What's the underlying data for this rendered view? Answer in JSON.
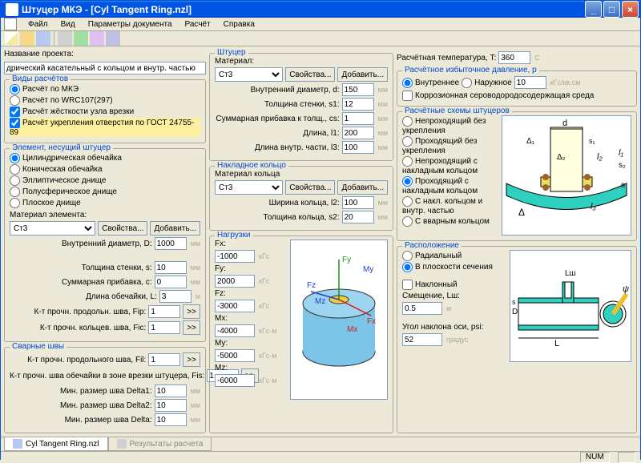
{
  "window": {
    "title": "Штуцер МКЭ - [Cyl Tangent Ring.nzl]"
  },
  "menu": {
    "file": "Файл",
    "view": "Вид",
    "docparams": "Параметры документа",
    "calc": "Расчёт",
    "help": "Справка"
  },
  "toolbar_icons": [
    "new",
    "open",
    "save",
    "sep",
    "cut",
    "calc",
    "report",
    "help"
  ],
  "project": {
    "label": "Название проекта:",
    "value": "дрический касательный с кольцом и внутр. частью"
  },
  "calc_types": {
    "title": "Виды расчётов",
    "items": [
      {
        "label": "Расчёт по МКЭ",
        "type": "radio",
        "checked": true
      },
      {
        "label": "Расчёт по WRC107(297)",
        "type": "radio",
        "checked": false
      },
      {
        "label": "Расчёт жёсткости узла врезки",
        "type": "check",
        "checked": true
      },
      {
        "label": "Расчёт укрепления отверстия по ГОСТ 24755-89",
        "type": "check",
        "checked": true,
        "highlight": true
      }
    ]
  },
  "element": {
    "title": "Элемент, несущий штуцер",
    "shapes": [
      {
        "label": "Цилиндрическая обечайка",
        "checked": true
      },
      {
        "label": "Коническая обечайка",
        "checked": false
      },
      {
        "label": "Эллиптическое днище",
        "checked": false
      },
      {
        "label": "Полусферическое днище",
        "checked": false
      },
      {
        "label": "Плоское днище",
        "checked": false
      }
    ],
    "mat_label": "Материал элемента:",
    "mat_value": "Ст3",
    "props_btn": "Свойства...",
    "add_btn": "Добавить...",
    "fields": [
      {
        "label": "Внутренний диаметр, D:",
        "value": "1000",
        "unit": "мм"
      },
      {
        "spacer": true
      },
      {
        "label": "Толщина стенки, s:",
        "value": "10",
        "unit": "мм"
      },
      {
        "label": "Суммарная прибавка, c:",
        "value": "0",
        "unit": "мм"
      },
      {
        "label": "Длина обечайки, L:",
        "value": "3",
        "unit": "м"
      },
      {
        "label": "К-т прочн. продольн. шва, Fip:",
        "value": "1",
        "btn": ">>"
      },
      {
        "label": "К-т прочн. кольцев. шва, Fic:",
        "value": "1",
        "btn": ">>"
      }
    ]
  },
  "welds": {
    "title": "Сварные швы",
    "fields": [
      {
        "label": "К-т прочн. продольного шва, Fil:",
        "value": "1",
        "btn": ">>"
      },
      {
        "label": "К-т прочн. шва обечайки в зоне врезки штуцера, Fis:",
        "value": "1",
        "btn": ">>"
      },
      {
        "label": "Мин. размер шва Delta1:",
        "value": "10",
        "unit": "мм"
      },
      {
        "label": "Мин. размер шва Delta2:",
        "value": "10",
        "unit": "мм"
      },
      {
        "label": "Мин. размер шва Delta:",
        "value": "10",
        "unit": "мм"
      }
    ]
  },
  "nozzle": {
    "title": "Штуцер",
    "mat_label": "Материал:",
    "mat_value": "Ст3",
    "props_btn": "Свойства...",
    "add_btn": "Добавить...",
    "fields": [
      {
        "label": "Внутренний диаметр, d:",
        "value": "150",
        "unit": "мм"
      },
      {
        "label": "Толщина стенки, s1:",
        "value": "12",
        "unit": "мм"
      },
      {
        "label": "Суммарная прибавка к толщ., cs:",
        "value": "1",
        "unit": "мм"
      },
      {
        "label": "Длина, l1:",
        "value": "200",
        "unit": "мм"
      },
      {
        "label": "Длина внутр. части, l3:",
        "value": "100",
        "unit": "мм"
      }
    ]
  },
  "pad": {
    "title": "Накладное кольцо",
    "mat_label": "Материал кольца",
    "mat_value": "Ст3",
    "props_btn": "Свойства...",
    "add_btn": "Добавить...",
    "fields": [
      {
        "label": "Ширина кольца, l2:",
        "value": "100",
        "unit": "мм"
      },
      {
        "label": "Толщина кольца, s2:",
        "value": "20",
        "unit": "мм"
      }
    ]
  },
  "loads": {
    "title": "Нагрузки",
    "fields": [
      {
        "label": "Fx:",
        "value": "-1000",
        "unit": "кГс"
      },
      {
        "label": "Fy:",
        "value": "2000",
        "unit": "кГс"
      },
      {
        "label": "Fz:",
        "value": "-3000",
        "unit": "кГс"
      },
      {
        "label": "Mx:",
        "value": "-4000",
        "unit": "кГс·м"
      },
      {
        "label": "My:",
        "value": "-5000",
        "unit": "кГс·м"
      },
      {
        "label": "Mz:",
        "value": "-6000",
        "unit": "кГс·м"
      }
    ],
    "diagram_colors": {
      "cylinder": "#7cc4e8",
      "axis_fx": "#d02020",
      "axis_fy": "#209020",
      "axis_fz": "#2040d0",
      "nozzle_top": "#e8d040"
    }
  },
  "temp": {
    "label": "Расчётная температура, T:",
    "value": "360",
    "unit": "С"
  },
  "pressure": {
    "title": "Расчётное избыточное давление, p",
    "internal": "Внутреннее",
    "external": "Наружное",
    "value": "10",
    "unit": "кГс/кв.см",
    "corrosive_label": "Коррозионная сероводородосодержащая среда"
  },
  "schemes": {
    "title": "Расчётные схемы штуцеров",
    "items": [
      "Непроходящий без укрепления",
      "Проходящий без укрепления",
      "Непроходящий с накладным кольцом",
      "Проходящий с накладным кольцом",
      "С накл. кольцом и внутр. частью",
      "С вварным кольцом"
    ],
    "selected": 3,
    "diagram_colors": {
      "shell": "#30d0c0",
      "nozzle": "#e8e060",
      "weld": "#a06030",
      "bg": "#fff"
    }
  },
  "location": {
    "title": "Расположение",
    "items": [
      {
        "label": "Радиальный",
        "checked": false
      },
      {
        "label": "В плоскости сечения",
        "checked": true
      }
    ],
    "inclined_label": "Наклонный",
    "offset_label": "Смещение, Lш:",
    "offset_value": "0.5",
    "offset_unit": "м",
    "angle_label": "Угол наклона оси, psi:",
    "angle_value": "52",
    "angle_unit": "градус",
    "diagram_colors": {
      "shell": "#30d0c0",
      "nozzle": "#e8e060"
    }
  },
  "tabs": {
    "active": "Cyl Tangent Ring.nzl",
    "inactive": "Результаты расчета"
  },
  "status": {
    "num": "NUM"
  }
}
